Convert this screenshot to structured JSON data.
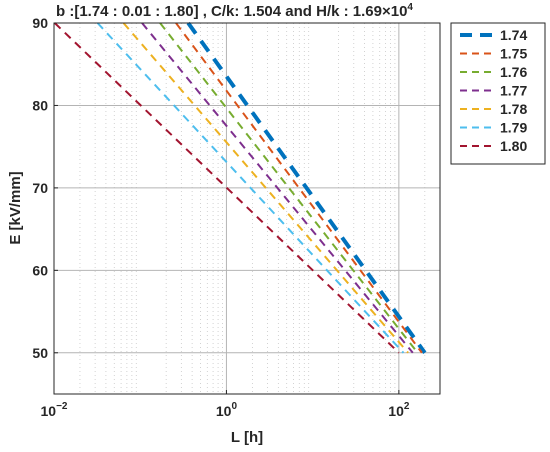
{
  "chart_data": {
    "type": "line",
    "title_main": "b :[1.74 : 0.01 : 1.80] , C/k: 1.504 and H/k : 1.69×10",
    "title_sup": "4",
    "xlabel": "L [h]",
    "ylabel": "E [kV/mm]",
    "xscale": "log",
    "xlim": [
      0.01,
      300
    ],
    "ylim": [
      45,
      90
    ],
    "x_ticks": [
      {
        "value": 0.01,
        "base": "10",
        "exp": "−2"
      },
      {
        "value": 1,
        "base": "10",
        "exp": "0"
      },
      {
        "value": 100,
        "base": "10",
        "exp": "2"
      }
    ],
    "y_ticks": [
      {
        "value": 50,
        "label": "50"
      },
      {
        "value": 60,
        "label": "60"
      },
      {
        "value": 70,
        "label": "70"
      },
      {
        "value": 80,
        "label": "80"
      },
      {
        "value": 90,
        "label": "90"
      }
    ],
    "grid": true,
    "minor_grid": true,
    "legend_position": "outside-top-right",
    "series": [
      {
        "name": "1.74",
        "color": "#0072BD",
        "thick": true,
        "x": [
          0.36,
          200
        ],
        "y": [
          90,
          50
        ]
      },
      {
        "name": "1.75",
        "color": "#D95319",
        "thick": false,
        "x": [
          0.26,
          185
        ],
        "y": [
          90,
          50
        ]
      },
      {
        "name": "1.76",
        "color": "#77AC30",
        "thick": false,
        "x": [
          0.17,
          165
        ],
        "y": [
          90,
          50
        ]
      },
      {
        "name": "1.77",
        "color": "#7E2F8E",
        "thick": false,
        "x": [
          0.105,
          145
        ],
        "y": [
          90,
          50
        ]
      },
      {
        "name": "1.78",
        "color": "#EDB120",
        "thick": false,
        "x": [
          0.064,
          128
        ],
        "y": [
          90,
          50
        ]
      },
      {
        "name": "1.79",
        "color": "#4DBEEE",
        "thick": false,
        "x": [
          0.032,
          113
        ],
        "y": [
          90,
          50
        ]
      },
      {
        "name": "1.80",
        "color": "#A2142F",
        "thick": false,
        "x": [
          0.0102,
          100
        ],
        "y": [
          90,
          50
        ]
      }
    ]
  }
}
